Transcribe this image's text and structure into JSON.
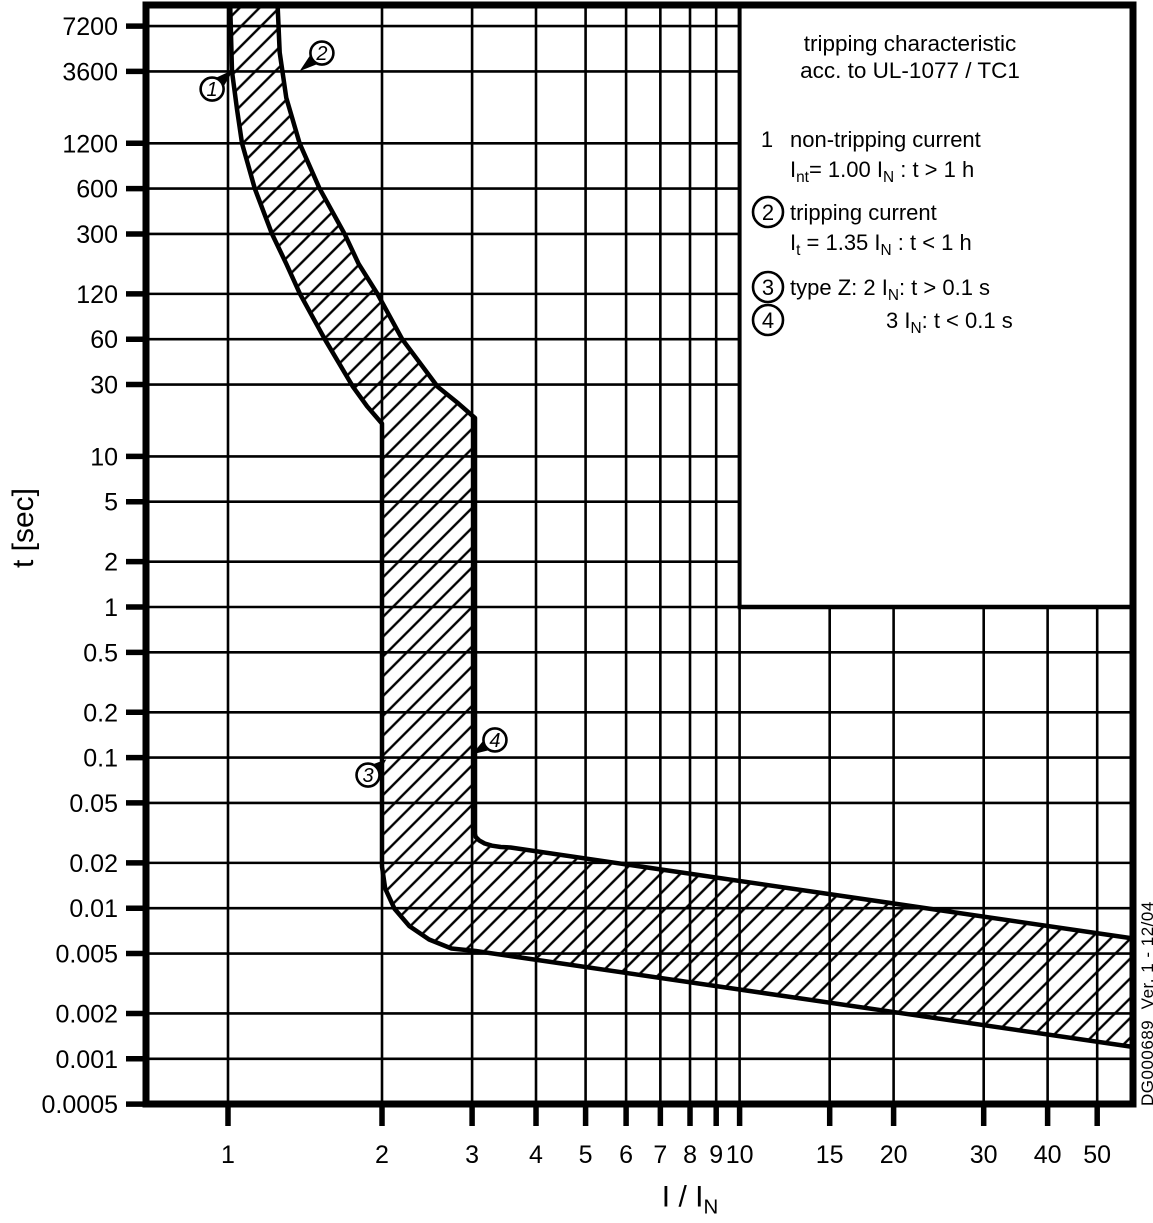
{
  "watermark": "DG000689  Ver. 1 - 12/04",
  "legend": {
    "title_lines": [
      "tripping characteristic",
      "acc. to UL-1077 / TC1"
    ],
    "items": [
      {
        "marker": "1",
        "circled": false,
        "indent": false,
        "lines": [
          "non-tripping current",
          "I_{nt}= 1.00 I_{N} : t > 1 h"
        ]
      },
      {
        "marker": "2",
        "circled": true,
        "indent": false,
        "lines": [
          "tripping current",
          "I_{t} = 1.35 I_{N} : t < 1 h"
        ]
      },
      {
        "marker": "3",
        "circled": true,
        "indent": false,
        "lines": [
          "type Z:  2 I_{N}: t > 0.1 s"
        ]
      },
      {
        "marker": "4",
        "circled": true,
        "indent": true,
        "lines": [
          "3 I_{N}: t < 0.1 s"
        ]
      }
    ]
  },
  "chart_data": {
    "type": "area",
    "title": "tripping characteristic acc. to UL-1077 / TC1",
    "xlabel": "I / I_{N}",
    "ylabel": "t [sec]",
    "x_scale": "log",
    "y_scale": "log",
    "xlim": [
      0.69,
      58.6
    ],
    "ylim": [
      0.0005,
      9930
    ],
    "grid": "on (labeled ticks only)",
    "legend_position": "top-right inset box",
    "x_ticks": [
      1,
      2,
      3,
      4,
      5,
      6,
      7,
      8,
      9,
      10,
      15,
      20,
      30,
      40,
      50
    ],
    "x_tick_labels": [
      "1",
      "2",
      "3",
      "4",
      "5",
      "6",
      "7",
      "8",
      "9",
      "10",
      "15",
      "20",
      "30",
      "40",
      "50"
    ],
    "y_ticks": [
      7200,
      3600,
      1200,
      600,
      300,
      120,
      60,
      30,
      10,
      5,
      2,
      1,
      0.5,
      0.2,
      0.1,
      0.05,
      0.02,
      0.01,
      0.005,
      0.002,
      0.001,
      0.0005
    ],
    "y_tick_labels": [
      "7200",
      "3600",
      "1200",
      "600",
      "300",
      "120",
      "60",
      "30",
      "10",
      "5",
      "2",
      "1",
      "0.5",
      "0.2",
      "0.1",
      "0.05",
      "0.02",
      "0.01",
      "0.005",
      "0.002",
      "0.001",
      "0.0005"
    ],
    "band": {
      "style": "diagonal-hatch",
      "lower_boundary": [
        [
          1.01,
          9930
        ],
        [
          1.018,
          3600
        ],
        [
          1.042,
          2000
        ],
        [
          1.065,
          1200
        ],
        [
          1.128,
          600
        ],
        [
          1.219,
          300
        ],
        [
          1.3,
          190
        ],
        [
          1.383,
          120
        ],
        [
          1.546,
          60
        ],
        [
          1.755,
          29
        ],
        [
          1.87,
          21.5
        ],
        [
          2.0,
          16.5
        ],
        [
          2.0,
          0.0189
        ],
        [
          2.029,
          0.0135
        ],
        [
          2.117,
          0.0099
        ],
        [
          2.262,
          0.0076
        ],
        [
          2.472,
          0.0062
        ],
        [
          2.735,
          0.0054
        ],
        [
          3.05,
          0.0052
        ],
        [
          58.6,
          0.0012
        ]
      ],
      "upper_boundary": [
        [
          1.25,
          9930
        ],
        [
          1.262,
          4800
        ],
        [
          1.3,
          2400
        ],
        [
          1.38,
          1200
        ],
        [
          1.51,
          600
        ],
        [
          1.69,
          300
        ],
        [
          1.8,
          190
        ],
        [
          1.96,
          120
        ],
        [
          2.19,
          60
        ],
        [
          2.57,
          29
        ],
        [
          2.82,
          22.5
        ],
        [
          3.04,
          18.0
        ],
        [
          3.04,
          0.0311
        ],
        [
          3.049,
          0.0297
        ],
        [
          3.097,
          0.0282
        ],
        [
          3.175,
          0.0269
        ],
        [
          3.281,
          0.026
        ],
        [
          3.413,
          0.0255
        ],
        [
          3.566,
          0.0253
        ],
        [
          58.6,
          0.0063
        ]
      ]
    },
    "point_markers": [
      {
        "label": "1",
        "x": 0.931,
        "t": 2750,
        "tip_x": 1.025,
        "tip_t": 3700
      },
      {
        "label": "2",
        "x": 1.526,
        "t": 4770,
        "tip_x": 1.38,
        "tip_t": 3620
      },
      {
        "label": "3",
        "x": 1.878,
        "t": 0.0766,
        "tip_x": 2.04,
        "tip_t": 0.0975
      },
      {
        "label": "4",
        "x": 3.325,
        "t": 0.131,
        "tip_x": 3.0,
        "tip_t": 0.105
      }
    ],
    "characteristic_values": {
      "non_tripping_current": "Int = 1.00 IN : t > 1 h",
      "tripping_current": "It = 1.35 IN : t < 1 h",
      "type_Z_hold": "2 IN: t > 0.1 s",
      "type_Z_trip": "3 IN: t < 0.1 s"
    },
    "ink_color": "#000000",
    "background_color": "#ffffff"
  }
}
